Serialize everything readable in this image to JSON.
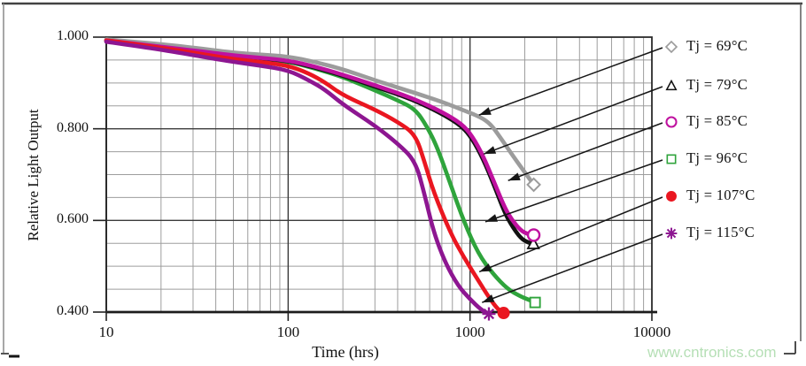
{
  "watermark": {
    "text": "www.cntronics.com",
    "color": "#b5dfb5"
  },
  "chart_data": {
    "type": "line",
    "title": "",
    "xlabel": "Time (hrs)",
    "ylabel": "Relative Light Output",
    "x_scale": "log",
    "xlim": [
      10,
      10000
    ],
    "ylim": [
      0.4,
      1.0
    ],
    "x_ticks": {
      "values": [
        10,
        100,
        1000,
        10000
      ],
      "labels": [
        "10",
        "100",
        "1000",
        "10000"
      ]
    },
    "y_ticks": {
      "values": [
        1.0,
        0.8,
        0.6,
        0.4
      ],
      "labels": [
        "1.000",
        "0.800",
        "0.600",
        "0.400"
      ]
    },
    "y_minor_step": 0.05,
    "grid": true,
    "legend_position": "right-outside",
    "series": [
      {
        "name": "Tj = 69°C",
        "color": "#9c9c9c",
        "marker": "diamond-open",
        "points": [
          [
            10,
            0.995
          ],
          [
            20,
            0.985
          ],
          [
            35,
            0.974
          ],
          [
            50,
            0.966
          ],
          [
            70,
            0.962
          ],
          [
            100,
            0.958
          ],
          [
            140,
            0.946
          ],
          [
            200,
            0.93
          ],
          [
            300,
            0.906
          ],
          [
            400,
            0.89
          ],
          [
            500,
            0.878
          ],
          [
            700,
            0.859
          ],
          [
            900,
            0.842
          ],
          [
            1150,
            0.825
          ],
          [
            1300,
            0.81
          ],
          [
            1450,
            0.784
          ],
          [
            1750,
            0.737
          ],
          [
            2000,
            0.705
          ],
          [
            2240,
            0.678
          ]
        ]
      },
      {
        "name": "Tj = 79°C",
        "color": "#111111",
        "marker": "triangle-open",
        "points": [
          [
            10,
            0.992
          ],
          [
            20,
            0.978
          ],
          [
            35,
            0.967
          ],
          [
            50,
            0.959
          ],
          [
            70,
            0.954
          ],
          [
            100,
            0.948
          ],
          [
            140,
            0.934
          ],
          [
            200,
            0.916
          ],
          [
            300,
            0.892
          ],
          [
            400,
            0.875
          ],
          [
            500,
            0.861
          ],
          [
            700,
            0.833
          ],
          [
            900,
            0.806
          ],
          [
            1030,
            0.778
          ],
          [
            1180,
            0.734
          ],
          [
            1340,
            0.682
          ],
          [
            1550,
            0.617
          ],
          [
            1700,
            0.588
          ],
          [
            1900,
            0.561
          ],
          [
            2080,
            0.552
          ],
          [
            2230,
            0.549
          ]
        ]
      },
      {
        "name": "Tj = 85°C",
        "color": "#bf119f",
        "marker": "circle-open",
        "points": [
          [
            10,
            0.993
          ],
          [
            20,
            0.979
          ],
          [
            35,
            0.968
          ],
          [
            50,
            0.96
          ],
          [
            70,
            0.955
          ],
          [
            100,
            0.949
          ],
          [
            140,
            0.936
          ],
          [
            200,
            0.918
          ],
          [
            300,
            0.895
          ],
          [
            400,
            0.878
          ],
          [
            500,
            0.864
          ],
          [
            700,
            0.837
          ],
          [
            900,
            0.811
          ],
          [
            1030,
            0.784
          ],
          [
            1180,
            0.741
          ],
          [
            1340,
            0.689
          ],
          [
            1550,
            0.628
          ],
          [
            1700,
            0.601
          ],
          [
            1900,
            0.578
          ],
          [
            2080,
            0.57
          ],
          [
            2240,
            0.568
          ]
        ]
      },
      {
        "name": "Tj = 96°C",
        "color": "#2fa43c",
        "marker": "square-open",
        "points": [
          [
            10,
            0.992
          ],
          [
            20,
            0.977
          ],
          [
            35,
            0.966
          ],
          [
            50,
            0.958
          ],
          [
            70,
            0.952
          ],
          [
            100,
            0.947
          ],
          [
            140,
            0.932
          ],
          [
            200,
            0.913
          ],
          [
            300,
            0.884
          ],
          [
            400,
            0.862
          ],
          [
            500,
            0.843
          ],
          [
            580,
            0.805
          ],
          [
            660,
            0.76
          ],
          [
            780,
            0.68
          ],
          [
            920,
            0.6
          ],
          [
            1110,
            0.527
          ],
          [
            1340,
            0.483
          ],
          [
            1610,
            0.45
          ],
          [
            1900,
            0.434
          ],
          [
            2100,
            0.427
          ],
          [
            2280,
            0.421
          ]
        ]
      },
      {
        "name": "Tj = 107°C",
        "color": "#ea1620",
        "marker": "circle-filled",
        "points": [
          [
            10,
            0.993
          ],
          [
            20,
            0.977
          ],
          [
            35,
            0.962
          ],
          [
            50,
            0.952
          ],
          [
            70,
            0.946
          ],
          [
            100,
            0.938
          ],
          [
            130,
            0.921
          ],
          [
            160,
            0.901
          ],
          [
            200,
            0.873
          ],
          [
            300,
            0.842
          ],
          [
            400,
            0.815
          ],
          [
            500,
            0.788
          ],
          [
            560,
            0.73
          ],
          [
            630,
            0.662
          ],
          [
            780,
            0.573
          ],
          [
            920,
            0.521
          ],
          [
            1110,
            0.469
          ],
          [
            1280,
            0.43
          ],
          [
            1430,
            0.405
          ],
          [
            1530,
            0.398
          ]
        ]
      },
      {
        "name": "Tj = 115°C",
        "color": "#8d1691",
        "marker": "asterisk",
        "points": [
          [
            10,
            0.99
          ],
          [
            20,
            0.973
          ],
          [
            35,
            0.956
          ],
          [
            50,
            0.946
          ],
          [
            70,
            0.938
          ],
          [
            100,
            0.928
          ],
          [
            130,
            0.906
          ],
          [
            160,
            0.885
          ],
          [
            200,
            0.853
          ],
          [
            300,
            0.807
          ],
          [
            400,
            0.768
          ],
          [
            500,
            0.73
          ],
          [
            560,
            0.66
          ],
          [
            630,
            0.575
          ],
          [
            730,
            0.508
          ],
          [
            860,
            0.457
          ],
          [
            1000,
            0.428
          ],
          [
            1150,
            0.405
          ],
          [
            1270,
            0.396
          ]
        ]
      }
    ],
    "legend_arrows": [
      {
        "series": "Tj = 69°C",
        "target": [
          1120,
          0.83
        ]
      },
      {
        "series": "Tj = 79°C",
        "target": [
          1190,
          0.745
        ]
      },
      {
        "series": "Tj = 85°C",
        "target": [
          1620,
          0.687
        ]
      },
      {
        "series": "Tj = 96°C",
        "target": [
          1215,
          0.597
        ]
      },
      {
        "series": "Tj = 107°C",
        "target": [
          1125,
          0.488
        ]
      },
      {
        "series": "Tj = 115°C",
        "target": [
          1165,
          0.421
        ]
      }
    ]
  }
}
